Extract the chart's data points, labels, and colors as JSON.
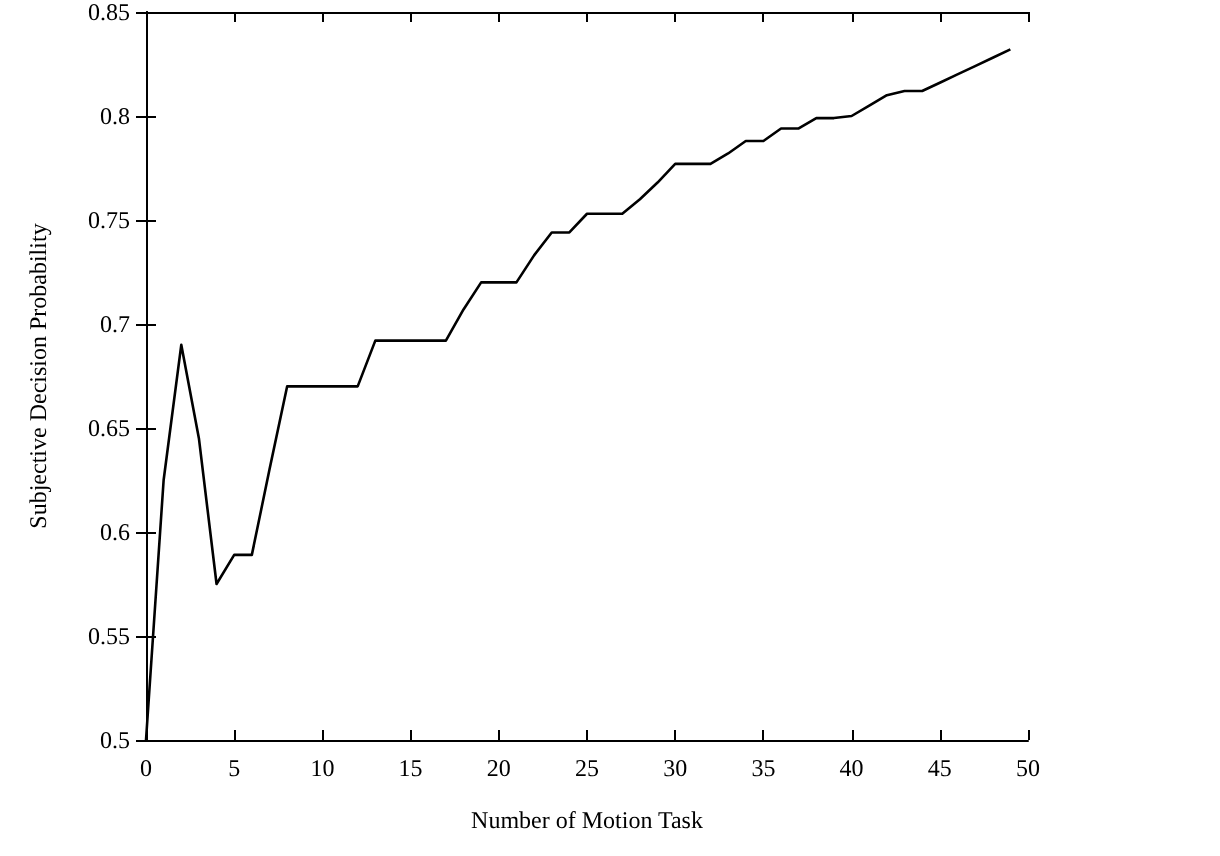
{
  "chart_data": {
    "type": "line",
    "xlabel": "Number of Motion Task",
    "ylabel": "Subjective Decision Probability",
    "x": [
      0,
      1,
      2,
      3,
      4,
      5,
      6,
      7,
      8,
      9,
      10,
      11,
      12,
      13,
      14,
      15,
      16,
      17,
      18,
      19,
      20,
      21,
      22,
      23,
      24,
      25,
      26,
      27,
      28,
      29,
      30,
      31,
      32,
      33,
      34,
      35,
      36,
      37,
      38,
      39,
      40,
      41,
      42,
      43,
      44,
      45,
      46,
      47,
      48,
      49
    ],
    "series": [
      {
        "color": "#000000",
        "values": [
          0.5,
          0.625,
          0.69,
          0.645,
          0.575,
          0.589,
          0.589,
          0.63,
          0.67,
          0.67,
          0.67,
          0.67,
          0.67,
          0.692,
          0.692,
          0.692,
          0.692,
          0.692,
          0.707,
          0.72,
          0.72,
          0.72,
          0.733,
          0.744,
          0.744,
          0.753,
          0.753,
          0.753,
          0.76,
          0.768,
          0.777,
          0.777,
          0.777,
          0.782,
          0.788,
          0.788,
          0.794,
          0.794,
          0.799,
          0.799,
          0.8,
          0.805,
          0.81,
          0.812,
          0.812,
          0.816,
          0.82,
          0.824,
          0.828,
          0.832
        ]
      }
    ],
    "xlim": [
      0,
      50
    ],
    "xticks": [
      0,
      5,
      10,
      15,
      20,
      25,
      30,
      35,
      40,
      45,
      50
    ],
    "ylim": [
      0.5,
      0.85
    ],
    "yticks": [
      0.5,
      0.55,
      0.6,
      0.65,
      0.7,
      0.75,
      0.8,
      0.85
    ],
    "grid": false,
    "marker": "none",
    "line_style": "solid"
  }
}
